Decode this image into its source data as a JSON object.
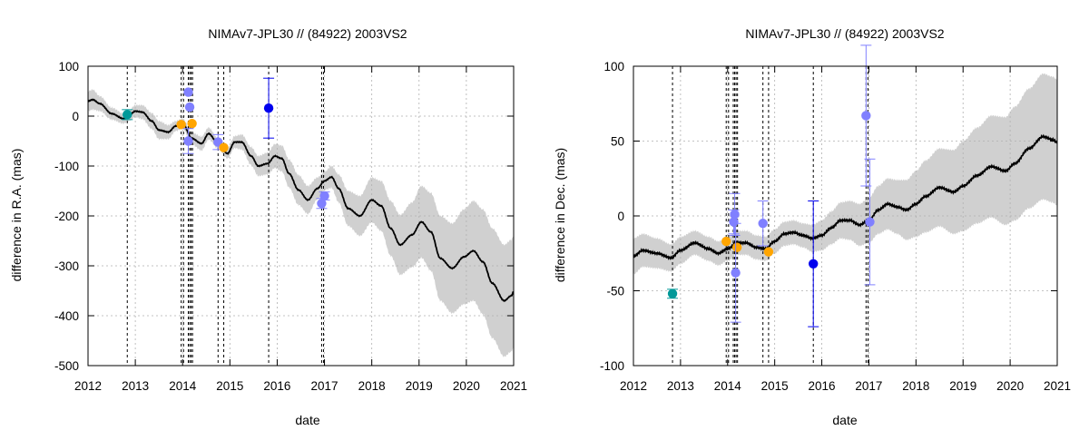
{
  "chart_data": [
    {
      "type": "scatter",
      "title": "NIMAv7-JPL30 // (84922) 2003VS2",
      "xlabel": "date",
      "ylabel": "difference in R.A. (mas)",
      "xlim": [
        2012,
        2021
      ],
      "ylim": [
        -500,
        100
      ],
      "xticks": [
        "2012",
        "2013",
        "2014",
        "2015",
        "2016",
        "2017",
        "2018",
        "2019",
        "2020",
        "2021"
      ],
      "yticks": [
        "-500",
        "-400",
        "-300",
        "-200",
        "-100",
        "0",
        "100"
      ],
      "grid": true,
      "observation_dates": [
        2012.83,
        2013.97,
        2014.02,
        2014.12,
        2014.15,
        2014.18,
        2014.21,
        2014.75,
        2014.87,
        2015.82,
        2016.94,
        2016.98
      ],
      "prediction": {
        "name": "NIMAv7 - JPL30",
        "x": [
          2012.0,
          2012.1,
          2012.25,
          2012.5,
          2012.75,
          2012.85,
          2013.0,
          2013.15,
          2013.35,
          2013.5,
          2013.7,
          2013.85,
          2014.0,
          2014.2,
          2014.4,
          2014.55,
          2014.75,
          2014.95,
          2015.1,
          2015.25,
          2015.45,
          2015.6,
          2015.8,
          2015.95,
          2016.1,
          2016.25,
          2016.45,
          2016.65,
          2016.85,
          2017.0,
          2017.15,
          2017.3,
          2017.5,
          2017.75,
          2018.0,
          2018.2,
          2018.4,
          2018.6,
          2018.85,
          2019.05,
          2019.25,
          2019.45,
          2019.7,
          2019.95,
          2020.15,
          2020.35,
          2020.55,
          2020.8,
          2020.95,
          2021.0
        ],
        "y": [
          30,
          33,
          25,
          5,
          -5,
          0,
          10,
          8,
          -10,
          -28,
          -32,
          -20,
          -15,
          -45,
          -55,
          -35,
          -55,
          -75,
          -52,
          -52,
          -80,
          -100,
          -95,
          -80,
          -85,
          -115,
          -148,
          -168,
          -145,
          -130,
          -122,
          -145,
          -185,
          -200,
          -168,
          -180,
          -225,
          -258,
          -238,
          -212,
          -232,
          -285,
          -305,
          -282,
          -270,
          -292,
          -335,
          -370,
          -360,
          -352
        ],
        "uncertainty": [
          20,
          20,
          15,
          12,
          10,
          10,
          12,
          14,
          16,
          18,
          14,
          10,
          10,
          12,
          14,
          12,
          10,
          10,
          12,
          15,
          18,
          20,
          22,
          24,
          26,
          28,
          30,
          28,
          22,
          18,
          22,
          28,
          35,
          40,
          45,
          50,
          55,
          60,
          65,
          72,
          78,
          85,
          90,
          95,
          100,
          105,
          110,
          112,
          112,
          112
        ]
      },
      "points": [
        {
          "x": 2012.83,
          "y": 3,
          "err": 10,
          "color": "#009999"
        },
        {
          "x": 2013.97,
          "y": -17,
          "err": 0,
          "color": "#ffa500"
        },
        {
          "x": 2014.2,
          "y": -15,
          "err": 0,
          "color": "#ffa500"
        },
        {
          "x": 2014.12,
          "y": 48,
          "err": 0,
          "color": "#8080ff"
        },
        {
          "x": 2014.15,
          "y": 18,
          "err": 0,
          "color": "#8080ff"
        },
        {
          "x": 2014.12,
          "y": -50,
          "err": 25,
          "color": "#8080ff"
        },
        {
          "x": 2014.75,
          "y": -52,
          "err": 15,
          "color": "#8080ff"
        },
        {
          "x": 2014.87,
          "y": -63,
          "err": 0,
          "color": "#ffa500"
        },
        {
          "x": 2015.82,
          "y": 16,
          "err": 60,
          "color": "#0000ee"
        },
        {
          "x": 2016.94,
          "y": -175,
          "err": 10,
          "color": "#8080ff"
        },
        {
          "x": 2017.0,
          "y": -160,
          "err": 8,
          "color": "#8080ff"
        }
      ]
    },
    {
      "type": "scatter",
      "title": "NIMAv7-JPL30 // (84922) 2003VS2",
      "xlabel": "date",
      "ylabel": "difference in Dec. (mas)",
      "xlim": [
        2012,
        2021
      ],
      "ylim": [
        -100,
        100
      ],
      "xticks": [
        "2012",
        "2013",
        "2014",
        "2015",
        "2016",
        "2017",
        "2018",
        "2019",
        "2020",
        "2021"
      ],
      "yticks": [
        "-100",
        "-50",
        "0",
        "50",
        "100"
      ],
      "grid": true,
      "observation_dates": [
        2012.83,
        2013.97,
        2014.02,
        2014.12,
        2014.15,
        2014.18,
        2014.21,
        2014.75,
        2014.87,
        2015.82,
        2016.94,
        2016.98
      ],
      "prediction": {
        "name": "NIMAv7 - JPL30",
        "x": [
          2012.0,
          2012.2,
          2012.5,
          2012.8,
          2013.0,
          2013.3,
          2013.6,
          2013.8,
          2014.0,
          2014.2,
          2014.4,
          2014.6,
          2014.8,
          2015.0,
          2015.2,
          2015.4,
          2015.6,
          2015.8,
          2016.0,
          2016.2,
          2016.4,
          2016.6,
          2016.8,
          2017.0,
          2017.2,
          2017.4,
          2017.6,
          2017.8,
          2018.0,
          2018.2,
          2018.5,
          2018.8,
          2019.0,
          2019.3,
          2019.6,
          2019.9,
          2020.1,
          2020.4,
          2020.7,
          2020.9,
          2021.0
        ],
        "y": [
          -27,
          -23,
          -25,
          -28,
          -23,
          -18,
          -22,
          -25,
          -22,
          -18,
          -18,
          -21,
          -22,
          -17,
          -12,
          -11,
          -13,
          -15,
          -13,
          -8,
          -3,
          -3,
          -6,
          -3,
          4,
          8,
          6,
          4,
          8,
          13,
          19,
          16,
          20,
          27,
          33,
          30,
          35,
          45,
          53,
          51,
          49
        ],
        "uncertainty": [
          12,
          11,
          10,
          9,
          9,
          8,
          8,
          8,
          8,
          8,
          8,
          8,
          8,
          8,
          8,
          8,
          8,
          9,
          10,
          11,
          12,
          13,
          14,
          15,
          16,
          17,
          18,
          20,
          22,
          24,
          26,
          28,
          30,
          32,
          34,
          36,
          38,
          40,
          42,
          42,
          42
        ]
      },
      "points": [
        {
          "x": 2012.83,
          "y": -52,
          "err": 3,
          "color": "#009999"
        },
        {
          "x": 2013.97,
          "y": -17,
          "err": 0,
          "color": "#ffa500"
        },
        {
          "x": 2014.2,
          "y": -21,
          "err": 0,
          "color": "#ffa500"
        },
        {
          "x": 2014.15,
          "y": 1,
          "err": 14,
          "color": "#8080ff"
        },
        {
          "x": 2014.13,
          "y": -4,
          "err": 8,
          "color": "#8080ff"
        },
        {
          "x": 2014.17,
          "y": -38,
          "err": 33,
          "color": "#8080ff"
        },
        {
          "x": 2014.75,
          "y": -5,
          "err": 15,
          "color": "#8080ff"
        },
        {
          "x": 2014.87,
          "y": -24,
          "err": 0,
          "color": "#ffa500"
        },
        {
          "x": 2015.82,
          "y": -32,
          "err": 42,
          "color": "#0000ee"
        },
        {
          "x": 2016.94,
          "y": 67,
          "err": 47,
          "color": "#8080ff"
        },
        {
          "x": 2017.02,
          "y": -4,
          "err": 42,
          "color": "#8080ff"
        }
      ]
    }
  ],
  "colors": {
    "band": "#d0d0d0",
    "curve": "#000000",
    "grid": "#b0b0b0",
    "vline": "#000000"
  }
}
